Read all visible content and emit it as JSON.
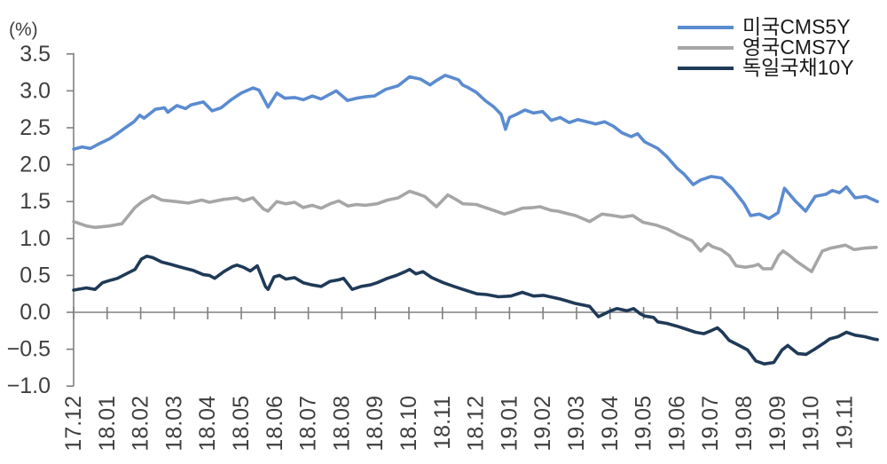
{
  "chart_data": {
    "type": "line",
    "title": "",
    "unit_label": "(%)",
    "xlabel": "",
    "ylabel": "",
    "ylim": [
      -1.0,
      3.5
    ],
    "grid": "off",
    "legend_position": "top-right",
    "axis_color": "#808080",
    "tick_label_color": "#3f3f3f",
    "y_ticks": [
      "3.5",
      "3.0",
      "2.5",
      "2.0",
      "1.5",
      "1.0",
      "0.5",
      "0.0",
      "−0.5",
      "−1.0"
    ],
    "y_tick_values": [
      3.5,
      3.0,
      2.5,
      2.0,
      1.5,
      1.0,
      0.5,
      0.0,
      -0.5,
      -1.0
    ],
    "x_labels": [
      "17.12",
      "18.01",
      "18.02",
      "18.03",
      "18.04",
      "18.05",
      "18.06",
      "18.07",
      "18.08",
      "18.09",
      "18.10",
      "18.11",
      "18.12",
      "19.01",
      "19.02",
      "19.03",
      "19.04",
      "19.05",
      "19.06",
      "19.07",
      "19.08",
      "19.09",
      "19.10",
      "19.11"
    ],
    "series": [
      {
        "name": "미국CMS5Y",
        "color": "#5b8bd0",
        "points": [
          [
            0,
            2.21
          ],
          [
            0.25,
            2.24
          ],
          [
            0.5,
            2.22
          ],
          [
            0.75,
            2.28
          ],
          [
            1.07,
            2.35
          ],
          [
            1.3,
            2.42
          ],
          [
            1.57,
            2.51
          ],
          [
            1.8,
            2.58
          ],
          [
            1.97,
            2.67
          ],
          [
            2.1,
            2.63
          ],
          [
            2.44,
            2.75
          ],
          [
            2.71,
            2.77
          ],
          [
            2.81,
            2.71
          ],
          [
            3.08,
            2.8
          ],
          [
            3.34,
            2.76
          ],
          [
            3.5,
            2.81
          ],
          [
            3.87,
            2.85
          ],
          [
            4.13,
            2.73
          ],
          [
            4.4,
            2.77
          ],
          [
            4.7,
            2.88
          ],
          [
            5.0,
            2.97
          ],
          [
            5.35,
            3.04
          ],
          [
            5.53,
            3.01
          ],
          [
            5.8,
            2.78
          ],
          [
            6.06,
            2.97
          ],
          [
            6.3,
            2.9
          ],
          [
            6.59,
            2.91
          ],
          [
            6.85,
            2.88
          ],
          [
            7.12,
            2.93
          ],
          [
            7.38,
            2.89
          ],
          [
            7.83,
            3.0
          ],
          [
            8.17,
            2.87
          ],
          [
            8.44,
            2.9
          ],
          [
            8.7,
            2.92
          ],
          [
            8.97,
            2.93
          ],
          [
            9.31,
            3.02
          ],
          [
            9.68,
            3.07
          ],
          [
            10.02,
            3.19
          ],
          [
            10.34,
            3.16
          ],
          [
            10.63,
            3.08
          ],
          [
            10.82,
            3.14
          ],
          [
            11.08,
            3.21
          ],
          [
            11.48,
            3.15
          ],
          [
            11.6,
            3.08
          ],
          [
            11.74,
            3.05
          ],
          [
            12.01,
            2.98
          ],
          [
            12.27,
            2.87
          ],
          [
            12.54,
            2.78
          ],
          [
            12.75,
            2.68
          ],
          [
            12.88,
            2.48
          ],
          [
            13.0,
            2.64
          ],
          [
            13.2,
            2.68
          ],
          [
            13.46,
            2.74
          ],
          [
            13.72,
            2.7
          ],
          [
            13.99,
            2.72
          ],
          [
            14.25,
            2.6
          ],
          [
            14.51,
            2.64
          ],
          [
            14.78,
            2.57
          ],
          [
            15.04,
            2.61
          ],
          [
            15.31,
            2.58
          ],
          [
            15.57,
            2.55
          ],
          [
            15.84,
            2.58
          ],
          [
            16.1,
            2.52
          ],
          [
            16.36,
            2.43
          ],
          [
            16.63,
            2.38
          ],
          [
            16.82,
            2.42
          ],
          [
            17.03,
            2.31
          ],
          [
            17.42,
            2.22
          ],
          [
            17.69,
            2.11
          ],
          [
            18.0,
            1.95
          ],
          [
            18.21,
            1.87
          ],
          [
            18.48,
            1.73
          ],
          [
            18.69,
            1.79
          ],
          [
            19.01,
            1.84
          ],
          [
            19.32,
            1.82
          ],
          [
            19.66,
            1.67
          ],
          [
            20.0,
            1.47
          ],
          [
            20.19,
            1.31
          ],
          [
            20.45,
            1.33
          ],
          [
            20.74,
            1.27
          ],
          [
            21.01,
            1.35
          ],
          [
            21.2,
            1.68
          ],
          [
            21.52,
            1.51
          ],
          [
            21.83,
            1.37
          ],
          [
            22.12,
            1.57
          ],
          [
            22.44,
            1.6
          ],
          [
            22.63,
            1.65
          ],
          [
            22.84,
            1.62
          ],
          [
            23.05,
            1.7
          ],
          [
            23.31,
            1.55
          ],
          [
            23.63,
            1.57
          ],
          [
            23.97,
            1.5
          ]
        ]
      },
      {
        "name": "영국CMS7Y",
        "color": "#a6a6a6",
        "points": [
          [
            0,
            1.23
          ],
          [
            0.38,
            1.17
          ],
          [
            0.64,
            1.15
          ],
          [
            1.07,
            1.17
          ],
          [
            1.44,
            1.2
          ],
          [
            1.83,
            1.42
          ],
          [
            2.05,
            1.5
          ],
          [
            2.36,
            1.58
          ],
          [
            2.63,
            1.52
          ],
          [
            3.05,
            1.5
          ],
          [
            3.42,
            1.48
          ],
          [
            3.82,
            1.52
          ],
          [
            4.05,
            1.49
          ],
          [
            4.48,
            1.53
          ],
          [
            4.87,
            1.55
          ],
          [
            5.06,
            1.51
          ],
          [
            5.35,
            1.55
          ],
          [
            5.66,
            1.4
          ],
          [
            5.8,
            1.37
          ],
          [
            6.06,
            1.5
          ],
          [
            6.33,
            1.47
          ],
          [
            6.59,
            1.49
          ],
          [
            6.85,
            1.42
          ],
          [
            7.12,
            1.45
          ],
          [
            7.38,
            1.41
          ],
          [
            7.65,
            1.47
          ],
          [
            7.91,
            1.51
          ],
          [
            8.18,
            1.44
          ],
          [
            8.44,
            1.46
          ],
          [
            8.7,
            1.45
          ],
          [
            9.05,
            1.47
          ],
          [
            9.36,
            1.52
          ],
          [
            9.68,
            1.55
          ],
          [
            10.02,
            1.64
          ],
          [
            10.29,
            1.6
          ],
          [
            10.47,
            1.57
          ],
          [
            10.82,
            1.43
          ],
          [
            11.16,
            1.59
          ],
          [
            11.4,
            1.53
          ],
          [
            11.61,
            1.47
          ],
          [
            12.01,
            1.46
          ],
          [
            12.4,
            1.4
          ],
          [
            12.85,
            1.33
          ],
          [
            13.14,
            1.37
          ],
          [
            13.38,
            1.41
          ],
          [
            13.72,
            1.42
          ],
          [
            13.91,
            1.43
          ],
          [
            14.25,
            1.38
          ],
          [
            14.44,
            1.37
          ],
          [
            14.78,
            1.33
          ],
          [
            14.97,
            1.31
          ],
          [
            15.39,
            1.23
          ],
          [
            15.76,
            1.33
          ],
          [
            16.1,
            1.31
          ],
          [
            16.36,
            1.29
          ],
          [
            16.68,
            1.31
          ],
          [
            16.98,
            1.22
          ],
          [
            17.38,
            1.18
          ],
          [
            17.7,
            1.13
          ],
          [
            18.04,
            1.05
          ],
          [
            18.44,
            0.97
          ],
          [
            18.7,
            0.83
          ],
          [
            18.92,
            0.93
          ],
          [
            19.05,
            0.89
          ],
          [
            19.31,
            0.85
          ],
          [
            19.55,
            0.77
          ],
          [
            19.76,
            0.63
          ],
          [
            20.03,
            0.61
          ],
          [
            20.29,
            0.63
          ],
          [
            20.42,
            0.65
          ],
          [
            20.56,
            0.59
          ],
          [
            20.82,
            0.59
          ],
          [
            21.03,
            0.77
          ],
          [
            21.16,
            0.83
          ],
          [
            21.35,
            0.77
          ],
          [
            21.56,
            0.69
          ],
          [
            22.01,
            0.55
          ],
          [
            22.33,
            0.83
          ],
          [
            22.59,
            0.87
          ],
          [
            23.02,
            0.91
          ],
          [
            23.28,
            0.85
          ],
          [
            23.6,
            0.87
          ],
          [
            23.94,
            0.88
          ]
        ]
      },
      {
        "name": "독일국채10Y",
        "color": "#1f3a57",
        "points": [
          [
            0,
            0.3
          ],
          [
            0.38,
            0.33
          ],
          [
            0.64,
            0.31
          ],
          [
            0.86,
            0.4
          ],
          [
            1.07,
            0.43
          ],
          [
            1.31,
            0.46
          ],
          [
            1.57,
            0.52
          ],
          [
            1.83,
            0.58
          ],
          [
            2.02,
            0.72
          ],
          [
            2.18,
            0.76
          ],
          [
            2.36,
            0.74
          ],
          [
            2.63,
            0.68
          ],
          [
            2.89,
            0.65
          ],
          [
            3.05,
            0.63
          ],
          [
            3.29,
            0.6
          ],
          [
            3.55,
            0.57
          ],
          [
            3.87,
            0.51
          ],
          [
            4.05,
            0.5
          ],
          [
            4.21,
            0.46
          ],
          [
            4.48,
            0.55
          ],
          [
            4.74,
            0.62
          ],
          [
            4.87,
            0.64
          ],
          [
            5.06,
            0.61
          ],
          [
            5.27,
            0.56
          ],
          [
            5.48,
            0.63
          ],
          [
            5.72,
            0.35
          ],
          [
            5.8,
            0.31
          ],
          [
            5.98,
            0.48
          ],
          [
            6.14,
            0.5
          ],
          [
            6.33,
            0.45
          ],
          [
            6.59,
            0.47
          ],
          [
            6.85,
            0.4
          ],
          [
            7.12,
            0.37
          ],
          [
            7.38,
            0.35
          ],
          [
            7.65,
            0.42
          ],
          [
            7.91,
            0.44
          ],
          [
            8.05,
            0.46
          ],
          [
            8.31,
            0.31
          ],
          [
            8.57,
            0.35
          ],
          [
            8.84,
            0.37
          ],
          [
            9.05,
            0.4
          ],
          [
            9.36,
            0.46
          ],
          [
            9.63,
            0.5
          ],
          [
            9.89,
            0.55
          ],
          [
            10.02,
            0.58
          ],
          [
            10.21,
            0.52
          ],
          [
            10.42,
            0.55
          ],
          [
            10.68,
            0.47
          ],
          [
            11.03,
            0.4
          ],
          [
            11.35,
            0.35
          ],
          [
            11.61,
            0.31
          ],
          [
            12.03,
            0.25
          ],
          [
            12.32,
            0.24
          ],
          [
            12.67,
            0.21
          ],
          [
            13.04,
            0.22
          ],
          [
            13.38,
            0.27
          ],
          [
            13.72,
            0.22
          ],
          [
            14.01,
            0.23
          ],
          [
            14.51,
            0.18
          ],
          [
            14.96,
            0.12
          ],
          [
            15.39,
            0.08
          ],
          [
            15.65,
            -0.06
          ],
          [
            16.02,
            0.02
          ],
          [
            16.2,
            0.05
          ],
          [
            16.5,
            0.02
          ],
          [
            16.7,
            0.05
          ],
          [
            16.9,
            -0.02
          ],
          [
            17.03,
            -0.05
          ],
          [
            17.3,
            -0.07
          ],
          [
            17.42,
            -0.13
          ],
          [
            17.69,
            -0.15
          ],
          [
            18.01,
            -0.19
          ],
          [
            18.28,
            -0.23
          ],
          [
            18.55,
            -0.27
          ],
          [
            18.8,
            -0.29
          ],
          [
            19.01,
            -0.25
          ],
          [
            19.2,
            -0.21
          ],
          [
            19.35,
            -0.27
          ],
          [
            19.55,
            -0.38
          ],
          [
            19.85,
            -0.45
          ],
          [
            20.1,
            -0.51
          ],
          [
            20.35,
            -0.66
          ],
          [
            20.6,
            -0.7
          ],
          [
            20.88,
            -0.68
          ],
          [
            21.13,
            -0.51
          ],
          [
            21.3,
            -0.45
          ],
          [
            21.6,
            -0.56
          ],
          [
            21.85,
            -0.57
          ],
          [
            22.1,
            -0.5
          ],
          [
            22.37,
            -0.42
          ],
          [
            22.55,
            -0.36
          ],
          [
            22.8,
            -0.33
          ],
          [
            23.05,
            -0.27
          ],
          [
            23.31,
            -0.31
          ],
          [
            23.6,
            -0.33
          ],
          [
            23.85,
            -0.36
          ],
          [
            23.97,
            -0.37
          ]
        ]
      }
    ]
  }
}
